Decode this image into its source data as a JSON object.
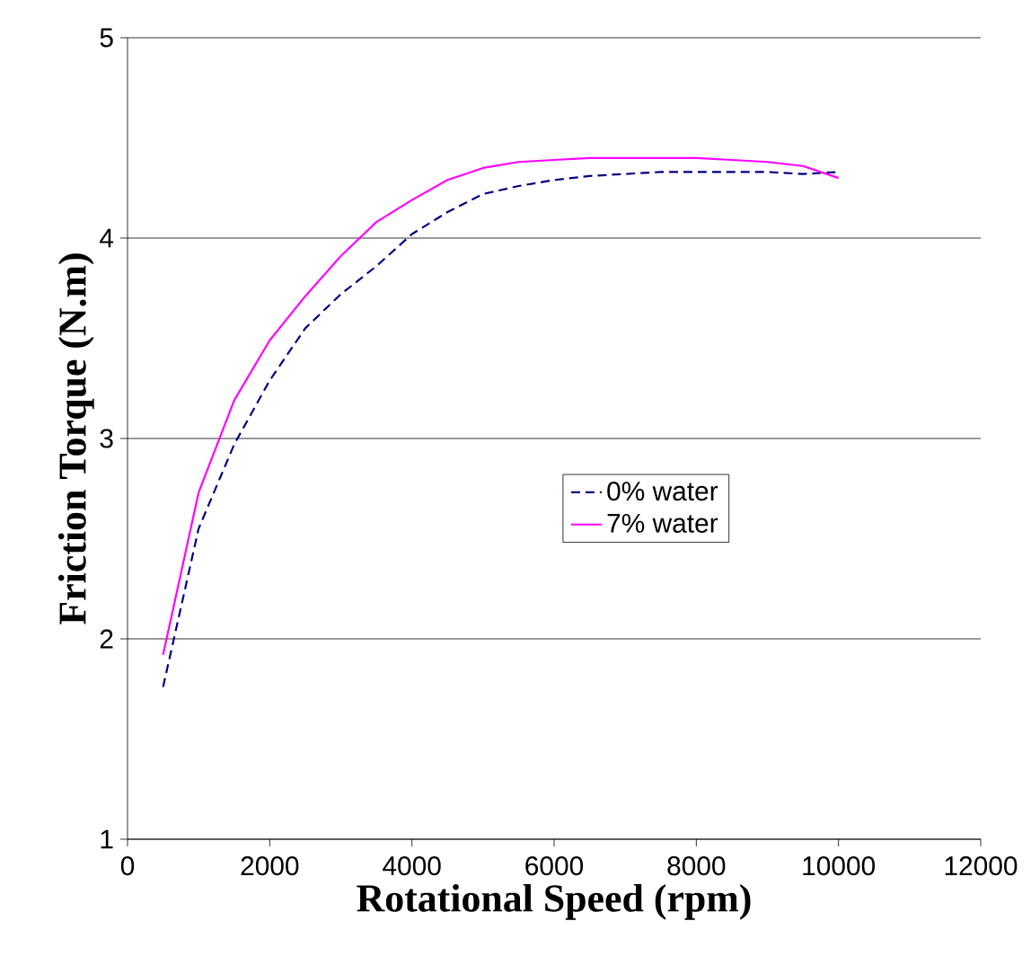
{
  "chart_data": {
    "type": "line",
    "xlabel": "Rotational Speed (rpm)",
    "ylabel": "Friction Torque (N.m)",
    "xlim": [
      0,
      12000
    ],
    "ylim": [
      1,
      5
    ],
    "xticks": [
      0,
      2000,
      4000,
      6000,
      8000,
      10000,
      12000
    ],
    "yticks": [
      1,
      2,
      3,
      4,
      5
    ],
    "grid": "y",
    "legend": "right",
    "marker": "none",
    "x": [
      500,
      1000,
      1500,
      2000,
      2500,
      3000,
      3500,
      4000,
      4500,
      5000,
      5500,
      6000,
      6500,
      7000,
      7500,
      8000,
      8500,
      9000,
      9500,
      10000
    ],
    "series": [
      {
        "name": "0% water",
        "color": "#000080",
        "line_style": "dashed",
        "values": [
          1.76,
          2.55,
          2.97,
          3.29,
          3.55,
          3.72,
          3.86,
          4.02,
          4.13,
          4.22,
          4.26,
          4.29,
          4.31,
          4.32,
          4.33,
          4.33,
          4.33,
          4.33,
          4.32,
          4.33
        ]
      },
      {
        "name": "7% water",
        "color": "#ff00ff",
        "line_style": "solid",
        "values": [
          1.92,
          2.73,
          3.19,
          3.49,
          3.71,
          3.91,
          4.08,
          4.19,
          4.29,
          4.35,
          4.38,
          4.39,
          4.4,
          4.4,
          4.4,
          4.4,
          4.39,
          4.38,
          4.36,
          4.3
        ]
      }
    ]
  }
}
